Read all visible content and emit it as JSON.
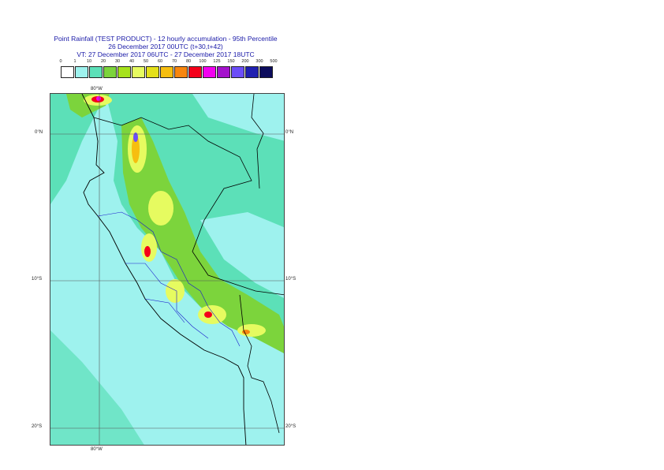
{
  "title": {
    "line1": "Point Rainfall (TEST PRODUCT) - 12 hourly accumulation - 95th Percentile",
    "line2": "26 December 2017 00UTC (t+30,t+42)",
    "line3": "VT: 27 December 2017 06UTC - 27 December 2017 18UTC"
  },
  "legend": {
    "ticks": [
      "0",
      "1",
      "10",
      "20",
      "30",
      "40",
      "50",
      "60",
      "70",
      "80",
      "100",
      "125",
      "150",
      "200",
      "300",
      "500"
    ],
    "colors": [
      "#ffffff",
      "#9ef2ee",
      "#5ce0b8",
      "#7cd43c",
      "#a6e21c",
      "#e6fb60",
      "#e4e01a",
      "#f6be10",
      "#f8860e",
      "#f4001a",
      "#f200f0",
      "#a412cc",
      "#6c4ef8",
      "#2020b0",
      "#0c0c5c"
    ]
  },
  "map": {
    "lon_labels": {
      "top": "80°W",
      "bottom": "80°W"
    },
    "lat_labels": [
      "0°N",
      "10°S",
      "20°S"
    ],
    "colors": {
      "ocean": "#9ef2ee",
      "light": "#5ce0b8",
      "green": "#7cd43c",
      "yellow": "#e6fb60",
      "orange": "#f6be10",
      "red": "#f4001a",
      "magenta": "#f200f0",
      "purple": "#6c4ef8"
    }
  }
}
